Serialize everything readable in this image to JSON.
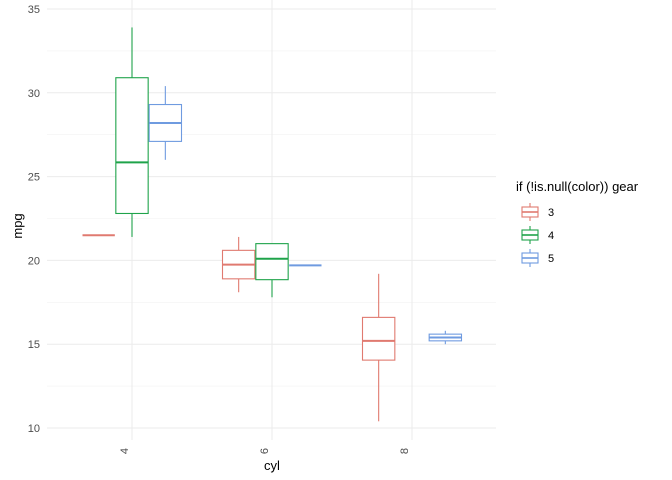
{
  "chart_data": {
    "type": "boxplot",
    "title": "",
    "xlabel": "cyl",
    "ylabel": "mpg",
    "categories": [
      "4",
      "6",
      "8"
    ],
    "ylim": [
      9.5,
      35
    ],
    "y_ticks": [
      10,
      15,
      20,
      25,
      30,
      35
    ],
    "grid": true,
    "x_tick_rotation": -90,
    "legend": {
      "title": "if (!is.null(color)) gear",
      "placement": "right"
    },
    "series": [
      {
        "name": "3",
        "color": "#e07a70",
        "boxes": [
          {
            "category": "4",
            "min": 21.5,
            "q1": 21.5,
            "median": 21.5,
            "q3": 21.5,
            "max": 21.5
          },
          {
            "category": "6",
            "min": 18.1,
            "q1": 18.9,
            "median": 19.75,
            "q3": 20.6,
            "max": 21.4
          },
          {
            "category": "8",
            "min": 10.4,
            "q1": 14.05,
            "median": 15.2,
            "q3": 16.6,
            "max": 19.2
          }
        ]
      },
      {
        "name": "4",
        "color": "#1fa34a",
        "boxes": [
          {
            "category": "4",
            "min": 21.4,
            "q1": 22.8,
            "median": 25.85,
            "q3": 30.9,
            "max": 33.9
          },
          {
            "category": "6",
            "min": 17.8,
            "q1": 18.85,
            "median": 20.1,
            "q3": 21.0,
            "max": 21.0
          }
        ]
      },
      {
        "name": "5",
        "color": "#6f9be0",
        "boxes": [
          {
            "category": "4",
            "min": 26.0,
            "q1": 27.1,
            "median": 28.2,
            "q3": 29.3,
            "max": 30.4
          },
          {
            "category": "6",
            "min": 19.7,
            "q1": 19.7,
            "median": 19.7,
            "q3": 19.7,
            "max": 19.7
          },
          {
            "category": "8",
            "min": 15.0,
            "q1": 15.2,
            "median": 15.4,
            "q3": 15.6,
            "max": 15.8
          }
        ]
      }
    ]
  }
}
